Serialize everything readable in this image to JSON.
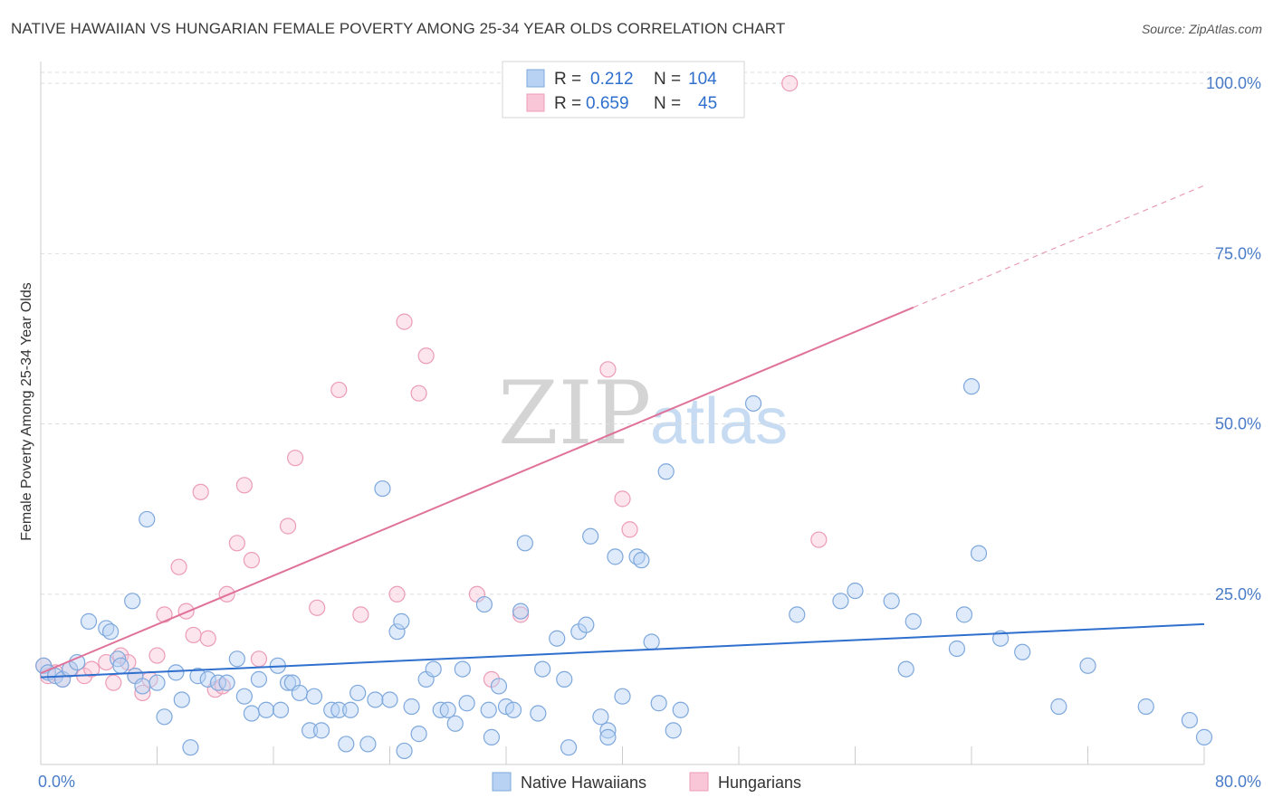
{
  "title": "NATIVE HAWAIIAN VS HUNGARIAN FEMALE POVERTY AMONG 25-34 YEAR OLDS CORRELATION CHART",
  "source": "Source: ZipAtlas.com",
  "watermark": {
    "zip": "ZIP",
    "atlas": "atlas"
  },
  "colors": {
    "blue_fill": "#b8d2f4",
    "blue_stroke": "#7ea8dc",
    "blue_line": "#2f6fce",
    "pink_fill": "#f8c6d6",
    "pink_stroke": "#ec9cb6",
    "pink_line": "#e0729a",
    "tick_label": "#4a7cc7",
    "grid": "#dddddd"
  },
  "legend": {
    "rows": [
      {
        "r_label": "R =",
        "r_value": "0.212",
        "n_label": "N =",
        "n_value": "104"
      },
      {
        "r_label": "R =",
        "r_value": "0.659",
        "n_label": "N =",
        "n_value": "45"
      }
    ]
  },
  "chart_data": {
    "type": "scatter",
    "title": "NATIVE HAWAIIAN VS HUNGARIAN FEMALE POVERTY AMONG 25-34 YEAR OLDS CORRELATION CHART",
    "xlabel": "",
    "ylabel": "Female Poverty Among 25-34 Year Olds",
    "xlim": [
      0,
      80
    ],
    "ylim": [
      0,
      104
    ],
    "x_tick_labels": [
      "0.0%",
      "80.0%"
    ],
    "y_ticks": [
      25,
      50,
      75,
      100
    ],
    "y_tick_labels": [
      "25.0%",
      "50.0%",
      "75.0%",
      "100.0%"
    ],
    "grid": true,
    "legend_position": "bottom-center",
    "series": [
      {
        "name": "Native Hawaiians",
        "color": "#b8d2f4",
        "r": 0.212,
        "n": 104,
        "trend": {
          "x": [
            0,
            80
          ],
          "y": [
            12.8,
            20.6
          ],
          "dashed_from": null
        },
        "points": [
          [
            0.2,
            14.5
          ],
          [
            0.5,
            13.5
          ],
          [
            1,
            13
          ],
          [
            1.5,
            12.5
          ],
          [
            2,
            14
          ],
          [
            2.5,
            15
          ],
          [
            3.3,
            21
          ],
          [
            4.5,
            20
          ],
          [
            4.8,
            19.5
          ],
          [
            5.3,
            15.5
          ],
          [
            5.5,
            14.5
          ],
          [
            6.3,
            24
          ],
          [
            6.5,
            13
          ],
          [
            7,
            11.5
          ],
          [
            7.3,
            36
          ],
          [
            8,
            12
          ],
          [
            8.5,
            7
          ],
          [
            9.3,
            13.5
          ],
          [
            9.7,
            9.5
          ],
          [
            10.3,
            2.5
          ],
          [
            10.8,
            13
          ],
          [
            11.5,
            12.5
          ],
          [
            12.2,
            12
          ],
          [
            12.8,
            12
          ],
          [
            13.5,
            15.5
          ],
          [
            14,
            10
          ],
          [
            14.5,
            7.5
          ],
          [
            15,
            12.5
          ],
          [
            15.5,
            8
          ],
          [
            16.3,
            14.5
          ],
          [
            16.5,
            8
          ],
          [
            17,
            12
          ],
          [
            17.3,
            12
          ],
          [
            17.8,
            10.5
          ],
          [
            18.5,
            5
          ],
          [
            18.8,
            10
          ],
          [
            19.3,
            5
          ],
          [
            20,
            8
          ],
          [
            20.5,
            8
          ],
          [
            21,
            3
          ],
          [
            21.3,
            8
          ],
          [
            21.8,
            10.5
          ],
          [
            22.5,
            3
          ],
          [
            23,
            9.5
          ],
          [
            23.5,
            40.5
          ],
          [
            24,
            9.5
          ],
          [
            24.5,
            19.5
          ],
          [
            24.8,
            21
          ],
          [
            25,
            2
          ],
          [
            25.5,
            8.5
          ],
          [
            26,
            4.5
          ],
          [
            26.5,
            12.5
          ],
          [
            27,
            14
          ],
          [
            27.5,
            8
          ],
          [
            28,
            8
          ],
          [
            28.5,
            6
          ],
          [
            29,
            14
          ],
          [
            29.3,
            9
          ],
          [
            30.5,
            23.5
          ],
          [
            30.8,
            8
          ],
          [
            31,
            4
          ],
          [
            31.5,
            11.5
          ],
          [
            32,
            8.5
          ],
          [
            32.5,
            8
          ],
          [
            33,
            22.5
          ],
          [
            33.3,
            32.5
          ],
          [
            34.2,
            7.5
          ],
          [
            34.5,
            14
          ],
          [
            35.5,
            18.5
          ],
          [
            36,
            12.5
          ],
          [
            36.3,
            2.5
          ],
          [
            37,
            19.5
          ],
          [
            37.5,
            20.5
          ],
          [
            37.8,
            33.5
          ],
          [
            38.5,
            7
          ],
          [
            39,
            5
          ],
          [
            39,
            4
          ],
          [
            39.5,
            30.5
          ],
          [
            40,
            10
          ],
          [
            41,
            30.5
          ],
          [
            41.3,
            30
          ],
          [
            42,
            18
          ],
          [
            42.5,
            9
          ],
          [
            43,
            43
          ],
          [
            43.5,
            5
          ],
          [
            44,
            8
          ],
          [
            49,
            53
          ],
          [
            52,
            22
          ],
          [
            55,
            24
          ],
          [
            56,
            25.5
          ],
          [
            58.5,
            24
          ],
          [
            59.5,
            14
          ],
          [
            60,
            21
          ],
          [
            63,
            17
          ],
          [
            63.5,
            22
          ],
          [
            64,
            55.5
          ],
          [
            64.5,
            31
          ],
          [
            66,
            18.5
          ],
          [
            67.5,
            16.5
          ],
          [
            70,
            8.5
          ],
          [
            72,
            14.5
          ],
          [
            76,
            8.5
          ],
          [
            79,
            6.5
          ],
          [
            80,
            4
          ]
        ]
      },
      {
        "name": "Hungarians",
        "color": "#f8c6d6",
        "r": 0.659,
        "n": 45,
        "trend": {
          "x": [
            0,
            80
          ],
          "y": [
            13.4,
            85
          ],
          "dashed_from": 60
        },
        "points": [
          [
            0.2,
            14.5
          ],
          [
            0.5,
            13
          ],
          [
            1,
            13.5
          ],
          [
            1.5,
            12.5
          ],
          [
            2,
            14
          ],
          [
            3,
            13
          ],
          [
            3.5,
            14
          ],
          [
            4.5,
            15
          ],
          [
            5,
            12
          ],
          [
            5.5,
            16
          ],
          [
            6,
            15
          ],
          [
            6.5,
            13
          ],
          [
            7,
            10.5
          ],
          [
            7.5,
            12.5
          ],
          [
            8,
            16
          ],
          [
            8.5,
            22
          ],
          [
            9.5,
            29
          ],
          [
            10,
            22.5
          ],
          [
            10.5,
            19
          ],
          [
            11,
            40
          ],
          [
            11.5,
            18.5
          ],
          [
            12,
            11
          ],
          [
            12.5,
            11.5
          ],
          [
            12.8,
            25
          ],
          [
            13.5,
            32.5
          ],
          [
            14,
            41
          ],
          [
            14.5,
            30
          ],
          [
            15,
            15.5
          ],
          [
            17,
            35
          ],
          [
            17.5,
            45
          ],
          [
            19,
            23
          ],
          [
            20.5,
            55
          ],
          [
            22,
            22
          ],
          [
            24.5,
            25
          ],
          [
            25,
            65
          ],
          [
            26,
            54.5
          ],
          [
            26.5,
            60
          ],
          [
            30,
            25
          ],
          [
            31,
            12.5
          ],
          [
            33,
            22
          ],
          [
            39,
            58
          ],
          [
            40,
            39
          ],
          [
            40.5,
            34.5
          ],
          [
            51.5,
            100
          ],
          [
            53.5,
            33
          ]
        ]
      }
    ]
  }
}
